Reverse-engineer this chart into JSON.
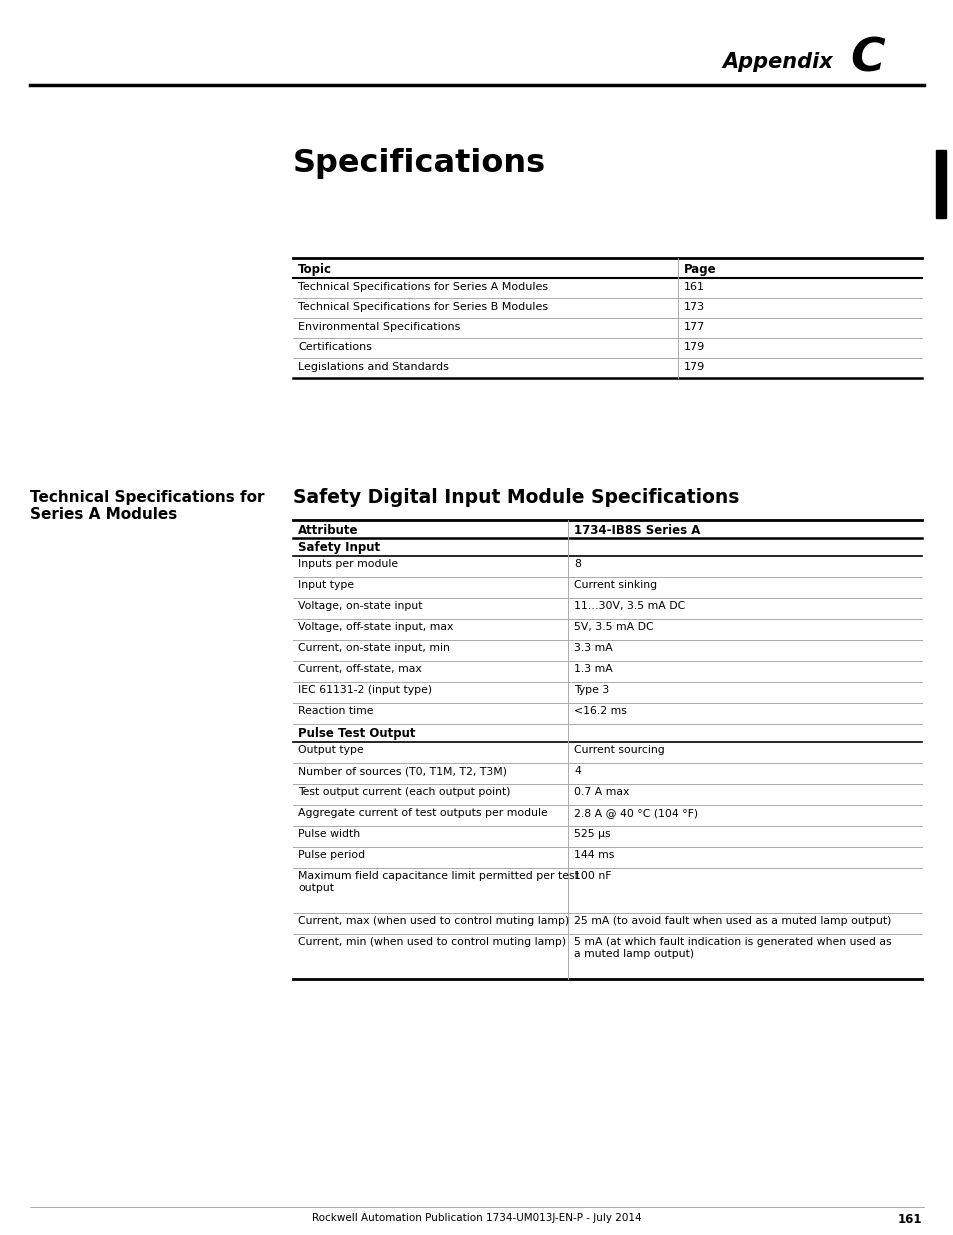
{
  "page_bg": "#ffffff",
  "appendix_label": "Appendix",
  "appendix_letter": "C",
  "chapter_title": "Specifications",
  "toc_table": {
    "headers": [
      "Topic",
      "Page"
    ],
    "rows": [
      [
        "Technical Specifications for Series A Modules",
        "161"
      ],
      [
        "Technical Specifications for Series B Modules",
        "173"
      ],
      [
        "Environmental Specifications",
        "177"
      ],
      [
        "Certifications",
        "179"
      ],
      [
        "Legislations and Standards",
        "179"
      ]
    ]
  },
  "left_section_title": "Technical Specifications for\nSeries A Modules",
  "right_section_title": "Safety Digital Input Module Specifications",
  "spec_table": {
    "header": [
      "Attribute",
      "1734-IB8S Series A"
    ],
    "sections": [
      {
        "section_title": "Safety Input",
        "rows": [
          [
            "Inputs per module",
            "8"
          ],
          [
            "Input type",
            "Current sinking"
          ],
          [
            "Voltage, on-state input",
            "11…30V, 3.5 mA DC"
          ],
          [
            "Voltage, off-state input, max",
            "5V, 3.5 mA DC"
          ],
          [
            "Current, on-state input, min",
            "3.3 mA"
          ],
          [
            "Current, off-state, max",
            "1.3 mA"
          ],
          [
            "IEC 61131-2 (input type)",
            "Type 3"
          ],
          [
            "Reaction time",
            "<16.2 ms"
          ]
        ]
      },
      {
        "section_title": "Pulse Test Output",
        "rows": [
          [
            "Output type",
            "Current sourcing"
          ],
          [
            "Number of sources (T0, T1M, T2, T3M)",
            "4"
          ],
          [
            "Test output current (each output point)",
            "0.7 A max"
          ],
          [
            "Aggregate current of test outputs per module",
            "2.8 A @ 40 °C (104 °F)"
          ],
          [
            "Pulse width",
            "525 μs"
          ],
          [
            "Pulse period",
            "144 ms"
          ],
          [
            "Maximum field capacitance limit permitted per test\noutput",
            "100 nF"
          ],
          [
            "Current, max (when used to control muting lamp)",
            "25 mA (to avoid fault when used as a muted lamp output)"
          ],
          [
            "Current, min (when used to control muting lamp)",
            "5 mA (at which fault indication is generated when used as\na muted lamp output)"
          ]
        ]
      }
    ]
  },
  "footer_text": "Rockwell Automation Publication 1734-UM013J-EN-P - July 2014",
  "footer_page": "161"
}
